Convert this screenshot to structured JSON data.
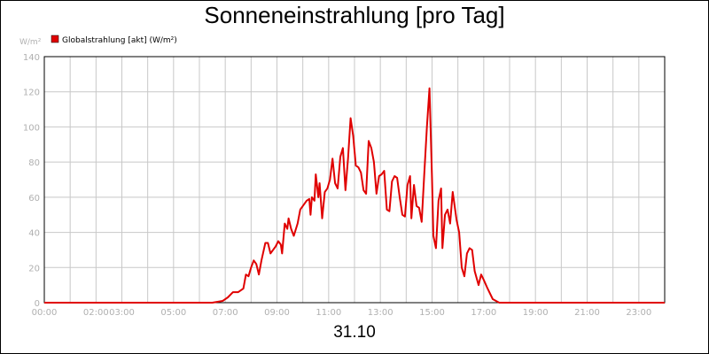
{
  "chart_data": {
    "type": "line",
    "title": "Sonneneinstrahlung [pro Tag]",
    "date_label": "31.10",
    "ylabel": "W/m²",
    "ylim": [
      0,
      140
    ],
    "yticks": [
      0,
      20,
      40,
      60,
      80,
      100,
      120,
      140
    ],
    "xlim": [
      0,
      24
    ],
    "xticks": [
      {
        "value": 0,
        "label": "00:00"
      },
      {
        "value": 2,
        "label": "02:00"
      },
      {
        "value": 3,
        "label": "03:00"
      },
      {
        "value": 5,
        "label": "05:00"
      },
      {
        "value": 7,
        "label": "07:00"
      },
      {
        "value": 9,
        "label": "09:00"
      },
      {
        "value": 11,
        "label": "11:00"
      },
      {
        "value": 13,
        "label": "13:00"
      },
      {
        "value": 15,
        "label": "15:00"
      },
      {
        "value": 17,
        "label": "17:00"
      },
      {
        "value": 19,
        "label": "19:00"
      },
      {
        "value": 21,
        "label": "21:00"
      },
      {
        "value": 23,
        "label": "23:00"
      }
    ],
    "grid": true,
    "legend_position": "top-left",
    "series": [
      {
        "name": "Globalstrahlung [akt] (W/m²)",
        "color": "#e00000",
        "x": [
          0,
          6.5,
          6.9,
          7.1,
          7.3,
          7.5,
          7.7,
          7.8,
          7.9,
          8.0,
          8.1,
          8.2,
          8.3,
          8.4,
          8.55,
          8.65,
          8.75,
          8.85,
          8.95,
          9.05,
          9.15,
          9.2,
          9.3,
          9.4,
          9.45,
          9.55,
          9.65,
          9.8,
          9.9,
          10.05,
          10.15,
          10.25,
          10.3,
          10.35,
          10.45,
          10.5,
          10.6,
          10.65,
          10.75,
          10.85,
          10.95,
          11.05,
          11.15,
          11.25,
          11.35,
          11.45,
          11.55,
          11.65,
          11.75,
          11.85,
          11.95,
          12.05,
          12.15,
          12.25,
          12.35,
          12.45,
          12.55,
          12.65,
          12.75,
          12.85,
          12.95,
          13.05,
          13.15,
          13.25,
          13.35,
          13.45,
          13.55,
          13.65,
          13.75,
          13.85,
          13.95,
          14.05,
          14.15,
          14.2,
          14.3,
          14.4,
          14.5,
          14.6,
          14.7,
          14.8,
          14.9,
          15.0,
          15.05,
          15.15,
          15.25,
          15.35,
          15.4,
          15.5,
          15.6,
          15.7,
          15.8,
          15.95,
          16.05,
          16.15,
          16.25,
          16.35,
          16.45,
          16.55,
          16.65,
          16.8,
          16.9,
          17.0,
          17.15,
          17.35,
          17.6,
          18.0,
          24
        ],
        "values": [
          0,
          0,
          1,
          3,
          6,
          6,
          8,
          16,
          15,
          20,
          24,
          22,
          16,
          24,
          34,
          34,
          28,
          30,
          32,
          35,
          33,
          28,
          45,
          42,
          48,
          42,
          38,
          45,
          53,
          56,
          58,
          59,
          50,
          60,
          58,
          73,
          60,
          68,
          48,
          63,
          65,
          70,
          82,
          68,
          65,
          83,
          88,
          64,
          82,
          105,
          95,
          78,
          77,
          74,
          64,
          62,
          92,
          88,
          80,
          62,
          72,
          73,
          75,
          53,
          52,
          69,
          72,
          71,
          60,
          50,
          49,
          67,
          72,
          48,
          67,
          55,
          54,
          46,
          73,
          100,
          122,
          70,
          38,
          31,
          58,
          65,
          31,
          50,
          53,
          45,
          63,
          47,
          40,
          20,
          15,
          28,
          31,
          30,
          18,
          10,
          16,
          13,
          8,
          2,
          0,
          0,
          0
        ]
      }
    ]
  }
}
